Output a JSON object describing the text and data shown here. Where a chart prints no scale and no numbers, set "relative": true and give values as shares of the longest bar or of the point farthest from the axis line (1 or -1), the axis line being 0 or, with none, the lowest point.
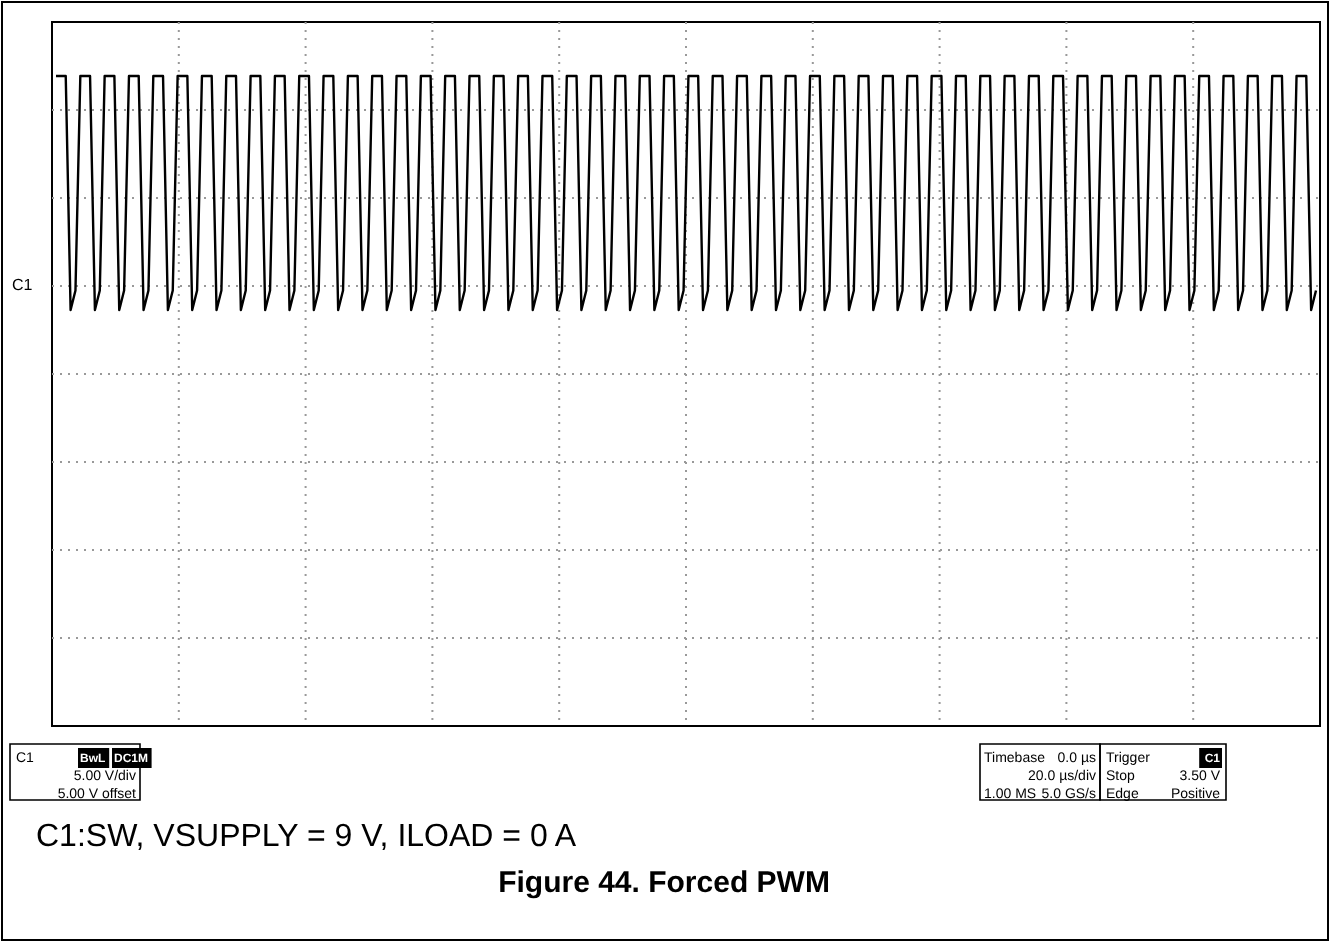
{
  "chart_data": {
    "type": "line",
    "title": "Figure 44. Forced PWM",
    "relative": true,
    "grid": true,
    "line_style": "solid",
    "categories": [
      null,
      null,
      null,
      null,
      null,
      null,
      null,
      null,
      null,
      null,
      null,
      null,
      null,
      null,
      null,
      null,
      null,
      null,
      null,
      null,
      null,
      null,
      null,
      null,
      null,
      null,
      null,
      null,
      null,
      null,
      null,
      null,
      null,
      null,
      null,
      null,
      null,
      null,
      null,
      null,
      null,
      null,
      null,
      null,
      null,
      null,
      null,
      null,
      null,
      null,
      null,
      null,
      null,
      null,
      null,
      null,
      null,
      null,
      null,
      null,
      null,
      null,
      null,
      null,
      null,
      null,
      null,
      null,
      null,
      null,
      null,
      null,
      null,
      null,
      null,
      null,
      null,
      null,
      null,
      null,
      null,
      null,
      null,
      null,
      null,
      null,
      null,
      null,
      null,
      null,
      null,
      null,
      null,
      null,
      null,
      null,
      null,
      null,
      null,
      null,
      null,
      null,
      null,
      null,
      null,
      null,
      null,
      null,
      null,
      null,
      null,
      null,
      null,
      null,
      null,
      null,
      null,
      null,
      null,
      null,
      null,
      null,
      null,
      null,
      null,
      null,
      null,
      null,
      null,
      null,
      null,
      null,
      null,
      null,
      null,
      null,
      null,
      null,
      null,
      null,
      null,
      null,
      null,
      null,
      null,
      null,
      null,
      null,
      null,
      null,
      null,
      null,
      null,
      null,
      null,
      null,
      null,
      null,
      null,
      null,
      null,
      null,
      null,
      null,
      null,
      null,
      null,
      null,
      null,
      null,
      null,
      null,
      null,
      null,
      null,
      null,
      null,
      null,
      null,
      null,
      null,
      null,
      null,
      null,
      null,
      null,
      null,
      null,
      null,
      null,
      null,
      null,
      null,
      null,
      null,
      null,
      null,
      null,
      null,
      null,
      null,
      null,
      null,
      null,
      null,
      null,
      null,
      null,
      null,
      null,
      null,
      null,
      null,
      null,
      null,
      null,
      null,
      null,
      null,
      null,
      null,
      null,
      null,
      null,
      null,
      null,
      null,
      null,
      null,
      null,
      null,
      null,
      null,
      null,
      null,
      null,
      null,
      null,
      null,
      null,
      null,
      null,
      null,
      null,
      null,
      null,
      null,
      null,
      null,
      null,
      null,
      null,
      null,
      null,
      null,
      null,
      null,
      null,
      null,
      null
    ],
    "series": [
      {
        "color": "#000000",
        "values": [
          1,
          1,
          1,
          0.64,
          0.67,
          1,
          1,
          1,
          0.64,
          0.67,
          1,
          1,
          1,
          0.64,
          0.67,
          1,
          1,
          1,
          0.64,
          0.67,
          1,
          1,
          1,
          0.64,
          0.67,
          1,
          1,
          1,
          0.64,
          0.67,
          1,
          1,
          1,
          0.64,
          0.67,
          1,
          1,
          1,
          0.64,
          0.67,
          1,
          1,
          1,
          0.64,
          0.67,
          1,
          1,
          1,
          0.64,
          0.67,
          1,
          1,
          1,
          0.64,
          0.67,
          1,
          1,
          1,
          0.64,
          0.67,
          1,
          1,
          1,
          0.64,
          0.67,
          1,
          1,
          1,
          0.64,
          0.67,
          1,
          1,
          1,
          0.64,
          0.67,
          1,
          1,
          1,
          0.64,
          0.67,
          1,
          1,
          1,
          0.64,
          0.67,
          1,
          1,
          1,
          0.64,
          0.67,
          1,
          1,
          1,
          0.64,
          0.67,
          1,
          1,
          1,
          0.64,
          0.67,
          1,
          1,
          1,
          0.64,
          0.67,
          1,
          1,
          1,
          0.64,
          0.67,
          1,
          1,
          1,
          0.64,
          0.67,
          1,
          1,
          1,
          0.64,
          0.67,
          1,
          1,
          1,
          0.64,
          0.67,
          1,
          1,
          1,
          0.64,
          0.67,
          1,
          1,
          1,
          0.64,
          0.67,
          1,
          1,
          1,
          0.64,
          0.67,
          1,
          1,
          1,
          0.64,
          0.67,
          1,
          1,
          1,
          0.64,
          0.67,
          1,
          1,
          1,
          0.64,
          0.67,
          1,
          1,
          1,
          0.64,
          0.67,
          1,
          1,
          1,
          0.64,
          0.67,
          1,
          1,
          1,
          0.64,
          0.67,
          1,
          1,
          1,
          0.64,
          0.67,
          1,
          1,
          1,
          0.64,
          0.67,
          1,
          1,
          1,
          0.64,
          0.67,
          1,
          1,
          1,
          0.64,
          0.67,
          1,
          1,
          1,
          0.64,
          0.67,
          1,
          1,
          1,
          0.64,
          0.67,
          1,
          1,
          1,
          0.64,
          0.67,
          1,
          1,
          1,
          0.64,
          0.67,
          1,
          1,
          1,
          0.64,
          0.67,
          1,
          1,
          1,
          0.64,
          0.67,
          1,
          1,
          1,
          0.64,
          0.67,
          1,
          1,
          1,
          0.64,
          0.67,
          1,
          1,
          1,
          0.64,
          0.67,
          1,
          1,
          1,
          0.64,
          0.67,
          1,
          1,
          1,
          0.64,
          0.67,
          1,
          1,
          1,
          0.64,
          0.67,
          1,
          1,
          1,
          0.64,
          0.67,
          1,
          1,
          1,
          0.64,
          0.67
        ]
      }
    ],
    "annotations": [
      "C1",
      "C1",
      "BwL",
      "DC1M",
      "5.00 V/div",
      "5.00 V offset",
      "Timebase",
      "0.0 µs",
      "20.0 µs/div",
      "1.00 MS",
      "5.0 GS/s",
      "Trigger",
      "C1",
      "Stop",
      "3.50 V",
      "Edge",
      "Positive",
      "C1:SW, VSUPPLY = 9 V, ILOAD = 0 A"
    ]
  }
}
